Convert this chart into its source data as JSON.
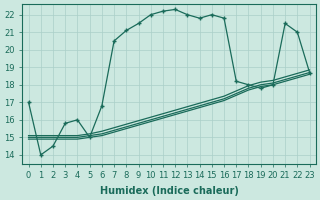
{
  "xlabel": "Humidex (Indice chaleur)",
  "bg_color": "#cce8e0",
  "line_color": "#1a6b5a",
  "grid_color": "#aacfc8",
  "xlim": [
    -0.5,
    23.5
  ],
  "ylim": [
    13.5,
    22.6
  ],
  "xticks": [
    0,
    1,
    2,
    3,
    4,
    5,
    6,
    7,
    8,
    9,
    10,
    11,
    12,
    13,
    14,
    15,
    16,
    17,
    18,
    19,
    20,
    21,
    22,
    23
  ],
  "yticks": [
    14,
    15,
    16,
    17,
    18,
    19,
    20,
    21,
    22
  ],
  "curve_x": [
    0,
    1,
    2,
    3,
    4,
    5,
    6,
    7,
    8,
    9,
    10,
    11,
    12,
    13,
    14,
    15,
    16,
    17,
    18,
    19,
    20,
    21,
    22,
    23
  ],
  "curve_y": [
    17.0,
    14.0,
    14.5,
    15.8,
    16.0,
    15.0,
    16.8,
    20.5,
    21.1,
    21.5,
    22.0,
    22.2,
    22.3,
    22.0,
    21.8,
    22.0,
    21.8,
    18.2,
    18.0,
    17.8,
    18.0,
    21.5,
    21.0,
    18.7
  ],
  "line_a_x": [
    0,
    1,
    2,
    3,
    4,
    5,
    6,
    7,
    8,
    9,
    10,
    11,
    12,
    13,
    14,
    15,
    16,
    17,
    18,
    19,
    20,
    21,
    22,
    23
  ],
  "line_a_y": [
    15.0,
    15.0,
    15.0,
    15.0,
    15.0,
    15.1,
    15.2,
    15.4,
    15.6,
    15.8,
    16.0,
    16.2,
    16.4,
    16.6,
    16.8,
    17.0,
    17.2,
    17.5,
    17.8,
    18.0,
    18.1,
    18.3,
    18.5,
    18.7
  ],
  "line_b_x": [
    0,
    1,
    2,
    3,
    4,
    5,
    6,
    7,
    8,
    9,
    10,
    11,
    12,
    13,
    14,
    15,
    16,
    17,
    18,
    19,
    20,
    21,
    22,
    23
  ],
  "line_b_y": [
    15.1,
    15.1,
    15.1,
    15.1,
    15.1,
    15.2,
    15.35,
    15.55,
    15.75,
    15.95,
    16.15,
    16.35,
    16.55,
    16.75,
    16.95,
    17.15,
    17.35,
    17.65,
    17.95,
    18.15,
    18.25,
    18.45,
    18.65,
    18.85
  ],
  "line_c_x": [
    0,
    1,
    2,
    3,
    4,
    5,
    6,
    7,
    8,
    9,
    10,
    11,
    12,
    13,
    14,
    15,
    16,
    17,
    18,
    19,
    20,
    21,
    22,
    23
  ],
  "line_c_y": [
    14.9,
    14.9,
    14.9,
    14.9,
    14.9,
    15.0,
    15.1,
    15.3,
    15.5,
    15.7,
    15.9,
    16.1,
    16.3,
    16.5,
    16.7,
    16.9,
    17.1,
    17.4,
    17.7,
    17.9,
    18.0,
    18.2,
    18.4,
    18.6
  ]
}
